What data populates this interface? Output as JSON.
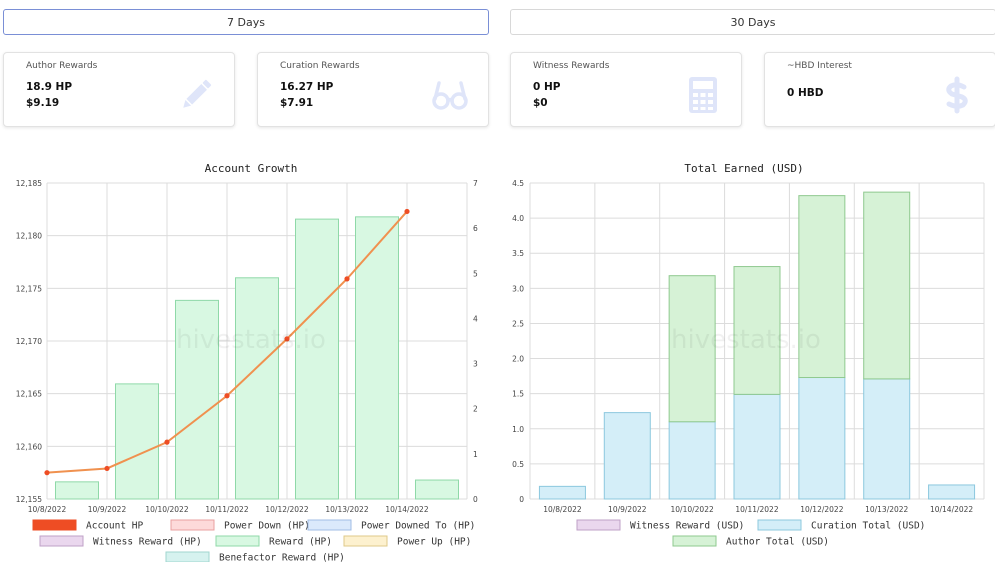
{
  "tabs": [
    {
      "label": "7 Days",
      "active": true
    },
    {
      "label": "30 Days",
      "active": false
    }
  ],
  "cards": [
    {
      "label": "Author Rewards",
      "line1": "18.9 HP",
      "line2": "$9.19",
      "icon": "pencil-icon"
    },
    {
      "label": "Curation Rewards",
      "line1": "16.27 HP",
      "line2": "$7.91",
      "icon": "glasses-icon"
    },
    {
      "label": "Witness Rewards",
      "line1": "0 HP",
      "line2": "$0",
      "icon": "calculator-icon"
    },
    {
      "label": "~HBD Interest",
      "line1": "0 HBD",
      "line2": "",
      "icon": "dollar-icon"
    }
  ],
  "colors": {
    "accent_active_tab": "#7a8fd6",
    "icon": "#dfe5f9",
    "account_hp": "#ee4d24",
    "line": "#f0914f",
    "reward_fill": "#d8f8e2",
    "reward_stroke": "#8fd9a8",
    "curation_fill": "#d4eef8",
    "curation_stroke": "#8cc8de",
    "author_fill": "#d6f2d6",
    "author_stroke": "#8fc98f"
  },
  "watermark": "hivestats.io",
  "chart_data": [
    {
      "type": "bar",
      "title": "Account Growth",
      "categories": [
        "10/8/2022",
        "10/9/2022",
        "10/10/2022",
        "10/11/2022",
        "10/12/2022",
        "10/13/2022",
        "10/14/2022"
      ],
      "y_left_ticks": [
        "12,185",
        "12,180",
        "12,175",
        "12,170",
        "12,165",
        "12,160",
        "12,155"
      ],
      "ylim_left": [
        12155,
        12185
      ],
      "y_right_ticks": [
        "7",
        "6",
        "5",
        "4",
        "3",
        "2",
        "1",
        "0"
      ],
      "ylim_right": [
        0,
        7
      ],
      "grid": true,
      "series": [
        {
          "name": "Account HP",
          "type": "line",
          "axis": "left",
          "values": [
            12157.5,
            12157.9,
            12160.4,
            12164.8,
            12170.2,
            12175.9,
            12182.3
          ]
        },
        {
          "name": "Reward (HP)",
          "type": "bar",
          "axis": "right",
          "values": [
            0.38,
            2.55,
            4.4,
            4.9,
            6.2,
            6.25,
            0.42
          ]
        }
      ],
      "legend": [
        "Account HP",
        "Power Down (HP)",
        "Power Downed To (HP)",
        "Witness Reward (HP)",
        "Reward (HP)",
        "Power Up (HP)",
        "Benefactor Reward (HP)"
      ],
      "legend_placement": "bottom"
    },
    {
      "type": "bar",
      "title": "Total Earned (USD)",
      "stacked": true,
      "categories": [
        "10/8/2022",
        "10/9/2022",
        "10/10/2022",
        "10/11/2022",
        "10/12/2022",
        "10/13/2022",
        "10/14/2022"
      ],
      "y_ticks": [
        "4.5",
        "4.0",
        "3.5",
        "3.0",
        "2.5",
        "2.0",
        "1.5",
        "1.0",
        "0.5",
        "0"
      ],
      "ylim": [
        0,
        4.5
      ],
      "grid": true,
      "series": [
        {
          "name": "Curation Total (USD)",
          "values": [
            0.18,
            1.23,
            1.1,
            1.49,
            1.73,
            1.71,
            0.2
          ]
        },
        {
          "name": "Author Total (USD)",
          "values": [
            0,
            0,
            2.08,
            1.82,
            2.59,
            2.66,
            0
          ]
        }
      ],
      "legend": [
        "Witness Reward (USD)",
        "Curation Total (USD)",
        "Author Total (USD)"
      ],
      "legend_placement": "bottom"
    }
  ]
}
